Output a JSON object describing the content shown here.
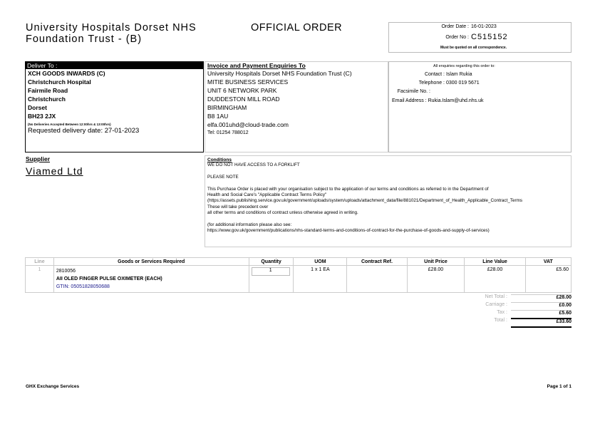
{
  "header": {
    "org_line1": "University Hospitals Dorset NHS",
    "org_line2": "Foundation Trust - (B)",
    "doc_title": "OFFICIAL ORDER"
  },
  "order": {
    "date_label": "Order Date :",
    "date": "16-01-2023",
    "no_label": "Order No :",
    "no": "C515152",
    "note": "Must be quoted on all correspondence."
  },
  "deliver": {
    "heading": "Deliver To :",
    "lines": [
      "XCH GOODS INWARDS (C)",
      "Christchurch Hospital",
      "Fairmile Road",
      "Christchurch",
      "Dorset",
      "BH23 2JX"
    ],
    "note": "(No Deliveries Accepted Between 12:00hrs & 13:00hrs)",
    "requested": "Requested delivery date: 27-01-2023"
  },
  "invoice": {
    "heading": "Invoice and Payment Enquiries To",
    "lines": [
      "University Hospitals Dorset NHS Foundation Trust (C)",
      "MITIE BUSINESS SERVICES",
      "UNIT 6 NETWORK PARK",
      "DUDDESTON MILL ROAD",
      "BIRMINGHAM",
      "B8 1AU",
      "elfa.001uhd@cloud-trade.com"
    ],
    "tel": "Tel: 01254 788012"
  },
  "enquiries": {
    "heading": "All enquiries regarding this order to:",
    "contact_label": "Contact :",
    "contact": "Islam Rukia",
    "tel_label": "Telephone :",
    "tel": "0300 019 5671",
    "fax_label": "Facsimile No. :",
    "fax": "",
    "email_label": "Email Address :",
    "email": "Rukia.Islam@uhd.nhs.uk"
  },
  "supplier": {
    "heading": "Supplier",
    "name": "Viamed Ltd"
  },
  "conditions": {
    "heading": "Conditions",
    "lines": [
      "WE DO NOT HAVE ACCESS TO A FORKLIFT",
      "",
      "PLEASE NOTE",
      "",
      "This Purchase Order is placed with your organisation subject to the application of our terms and conditions as referred to in the Department of",
      "Health and Social Care's \"Applicable Contract Terms Policy\"",
      "(https://assets.publishing.service.gov.uk/government/uploads/system/uploads/attachment_data/file/881021/Department_of_Health_Applicable_Contract_Terms",
      "These will take precedent over",
      "all other terms and conditions of contract unless otherwise agreed in writing.",
      "",
      "(for additional information please also see:",
      "https://www.gov.uk/government/publications/nhs-standard-terms-and-conditions-of-contract-for-the-purchase-of-goods-and-supply-of-services)"
    ]
  },
  "table": {
    "headers": [
      "Line",
      "Goods or Services Required",
      "Quantity",
      "UOM",
      "Contract Ref.",
      "Unit Price",
      "Line Value",
      "VAT"
    ],
    "rows": [
      {
        "line": "1",
        "code": "2810056",
        "desc": "AII OLED FINGER PULSE OXIMETER (EACH)",
        "gtin": "GTIN: 05051828050688",
        "qty": "1",
        "uom": "1 x 1 EA",
        "contract": "",
        "unit_price": "£28.00",
        "line_value": "£28.00",
        "vat": "£5.60"
      }
    ]
  },
  "totals": {
    "net_label": "Net Total :",
    "net": "£28.00",
    "carriage_label": "Carriage :",
    "carriage": "£0.00",
    "tax_label": "Tax :",
    "tax": "£5.60",
    "total_label": "Total :",
    "total": "£33.60"
  },
  "footer": {
    "left": "GHX Exchange Services",
    "right": "Page 1 of 1"
  },
  "colors": {
    "gtin": "#1a1a8c",
    "muted": "#aaaaaa"
  }
}
